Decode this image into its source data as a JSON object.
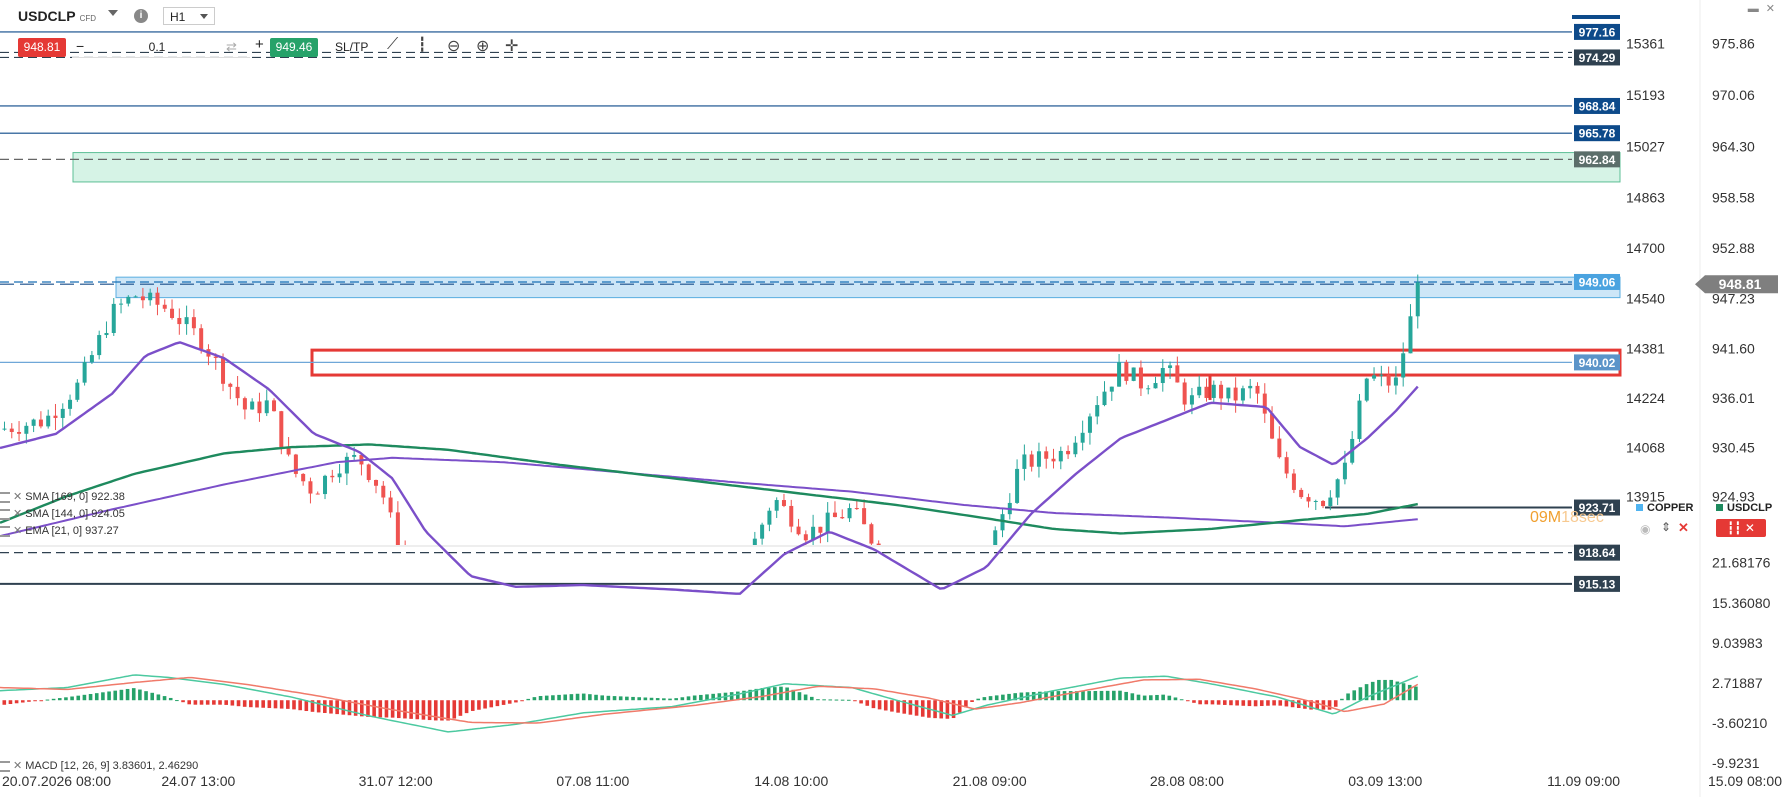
{
  "header": {
    "symbol": "USDCLP",
    "symbol_tag": "CFD",
    "timeframe": "H1",
    "sell_price": "948.81",
    "quantity": "0.1",
    "buy_price": "949.46",
    "sltp_label": "SL/TP",
    "info_label": "i"
  },
  "window_controls": {
    "minimize": "▬",
    "close": "✕"
  },
  "colors": {
    "up": "#26a69a",
    "down": "#ef5350",
    "sma169": "#7b4fc9",
    "sma144": "#1e8a5e",
    "ema21": "#7b4fc9",
    "zone_green": "#d6f3e6",
    "zone_blue": "#cde6f7",
    "red_box": "#e53935",
    "navy": "#0d4a8a",
    "dark_label": "#2f4150"
  },
  "legend": [
    {
      "label": "SMA [169, 0] 922.38"
    },
    {
      "label": "SMA [144, 0] 924.05"
    },
    {
      "label": "EMA [21, 0] 937.27"
    }
  ],
  "macd_legend": "MACD [12, 26, 9] 3.83601, 2.46290",
  "countdown": {
    "main": "09M",
    "seconds": "18sec"
  },
  "side_legend": {
    "copper": "COPPER",
    "usdclp": "USDCLP"
  },
  "chart_data": [
    {
      "type": "candlestick",
      "symbol": "USDCLP",
      "x_ticks": [
        "20.07.2026 08:00",
        "24.07 13:00",
        "31.07 12:00",
        "07.08 11:00",
        "14.08 10:00",
        "21.08 09:00",
        "28.08 08:00",
        "03.09 13:00",
        "11.09 09:00",
        "15.09 08:00"
      ],
      "right_axis": {
        "ticks": [
          "975.86",
          "970.06",
          "964.30",
          "958.58",
          "952.88",
          "947.23",
          "941.60",
          "936.01",
          "930.45",
          "924.93"
        ],
        "range": [
          919.5,
          978.5
        ]
      },
      "inner_axis": {
        "label": "COPPER",
        "ticks": [
          "15361",
          "15193",
          "15027",
          "14863",
          "14700",
          "14540",
          "14381",
          "14224",
          "14068",
          "13915"
        ]
      },
      "price_lines": [
        {
          "value": "977.16",
          "style": "solid",
          "color": "navy"
        },
        {
          "value": "974.29",
          "style": "dashed",
          "color": "dark"
        },
        {
          "value": "968.84",
          "style": "solid",
          "color": "navy"
        },
        {
          "value": "965.78",
          "style": "solid",
          "color": "navy"
        },
        {
          "value": "962.84",
          "style": "dashed",
          "color": "gray"
        },
        {
          "value": "949.06",
          "style": "dashed",
          "color": "blue"
        },
        {
          "value": "940.02",
          "style": "solid",
          "color": "lightblue"
        },
        {
          "value": "923.71",
          "style": "solid",
          "color": "dark"
        },
        {
          "value": "918.64",
          "style": "dashed",
          "color": "dark"
        },
        {
          "value": "915.13",
          "style": "solid",
          "color": "dark"
        }
      ],
      "current_price": "948.81",
      "zones": [
        {
          "name": "resistance-green",
          "from": 960.3,
          "to": 963.6
        },
        {
          "name": "resistance-blue",
          "from": 947.3,
          "to": 949.6
        },
        {
          "name": "range-red",
          "from": 938.6,
          "to": 941.4
        }
      ],
      "indicators": [
        "SMA [169, 0] 922.38",
        "SMA [144, 0] 924.05",
        "EMA [21, 0] 937.27"
      ],
      "close_path": [
        [
          0,
          932.5
        ],
        [
          40,
          933.5
        ],
        [
          70,
          937.5
        ],
        [
          100,
          945.6
        ],
        [
          120,
          947.6
        ],
        [
          150,
          946.0
        ],
        [
          180,
          942.5
        ],
        [
          200,
          938.5
        ],
        [
          220,
          934.5
        ],
        [
          240,
          935.5
        ],
        [
          260,
          928.0
        ],
        [
          280,
          925.5
        ],
        [
          300,
          928.5
        ],
        [
          320,
          929.3
        ],
        [
          340,
          925.8
        ],
        [
          360,
          917.5
        ],
        [
          400,
          914.5
        ],
        [
          440,
          914.5
        ],
        [
          480,
          915.8
        ],
        [
          520,
          915.0
        ],
        [
          560,
          913.8
        ],
        [
          600,
          914.8
        ],
        [
          660,
          916.0
        ],
        [
          690,
          924.8
        ],
        [
          720,
          920.8
        ],
        [
          760,
          923.5
        ],
        [
          800,
          916.0
        ],
        [
          840,
          913.0
        ],
        [
          880,
          917.8
        ],
        [
          910,
          928.5
        ],
        [
          950,
          930.0
        ],
        [
          980,
          936.0
        ],
        [
          1000,
          939.5
        ],
        [
          1020,
          937.5
        ],
        [
          1040,
          939.5
        ],
        [
          1060,
          935.5
        ],
        [
          1080,
          937.0
        ],
        [
          1100,
          936.0
        ],
        [
          1120,
          937.2
        ],
        [
          1140,
          929.0
        ],
        [
          1160,
          925.5
        ],
        [
          1180,
          924.5
        ],
        [
          1200,
          928.0
        ],
        [
          1220,
          938.5
        ],
        [
          1245,
          937.5
        ],
        [
          1258,
          944.5
        ],
        [
          1267,
          949.0
        ]
      ],
      "ema21_path": [
        [
          0,
          930.4
        ],
        [
          50,
          932.0
        ],
        [
          100,
          936.5
        ],
        [
          130,
          940.8
        ],
        [
          160,
          942.3
        ],
        [
          200,
          940.5
        ],
        [
          240,
          937.0
        ],
        [
          280,
          932.0
        ],
        [
          320,
          930.0
        ],
        [
          350,
          927.0
        ],
        [
          380,
          921.0
        ],
        [
          420,
          916.0
        ],
        [
          460,
          914.8
        ],
        [
          520,
          915.0
        ],
        [
          600,
          914.5
        ],
        [
          660,
          914.0
        ],
        [
          700,
          918.5
        ],
        [
          740,
          921.0
        ],
        [
          780,
          919.0
        ],
        [
          840,
          914.5
        ],
        [
          880,
          917.0
        ],
        [
          920,
          923.0
        ],
        [
          960,
          927.5
        ],
        [
          1000,
          931.5
        ],
        [
          1040,
          933.5
        ],
        [
          1080,
          935.5
        ],
        [
          1130,
          935.0
        ],
        [
          1160,
          930.5
        ],
        [
          1190,
          928.5
        ],
        [
          1220,
          931.5
        ],
        [
          1245,
          934.5
        ],
        [
          1265,
          937.3
        ]
      ],
      "sma144_path": [
        [
          0,
          922.0
        ],
        [
          60,
          925.0
        ],
        [
          120,
          927.5
        ],
        [
          200,
          929.8
        ],
        [
          260,
          930.5
        ],
        [
          330,
          930.8
        ],
        [
          400,
          930.2
        ],
        [
          500,
          928.5
        ],
        [
          600,
          927.0
        ],
        [
          700,
          925.5
        ],
        [
          800,
          924.0
        ],
        [
          880,
          922.5
        ],
        [
          940,
          921.3
        ],
        [
          1000,
          920.8
        ],
        [
          1080,
          921.3
        ],
        [
          1160,
          922.3
        ],
        [
          1220,
          923.0
        ],
        [
          1265,
          924.1
        ]
      ],
      "sma169_path": [
        [
          0,
          920.5
        ],
        [
          100,
          923.5
        ],
        [
          200,
          926.3
        ],
        [
          300,
          928.8
        ],
        [
          350,
          929.3
        ],
        [
          450,
          928.8
        ],
        [
          560,
          927.6
        ],
        [
          660,
          926.5
        ],
        [
          760,
          925.5
        ],
        [
          860,
          924.0
        ],
        [
          940,
          923.1
        ],
        [
          1040,
          922.6
        ],
        [
          1140,
          922.0
        ],
        [
          1200,
          921.6
        ],
        [
          1265,
          922.4
        ]
      ]
    },
    {
      "type": "macd",
      "label": "MACD [12, 26, 9] 3.83601, 2.46290",
      "y_ticks": [
        "21.68176",
        "15.36080",
        "9.03983",
        "2.71887",
        "-3.60210",
        "-9.9231"
      ],
      "range": [
        -11.0,
        24.0
      ],
      "macd_line": [
        [
          0,
          1.5
        ],
        [
          60,
          2.0
        ],
        [
          120,
          4.0
        ],
        [
          150,
          3.6
        ],
        [
          200,
          2.5
        ],
        [
          260,
          0.5
        ],
        [
          330,
          -2.5
        ],
        [
          400,
          -5.0
        ],
        [
          460,
          -3.8
        ],
        [
          520,
          -2.0
        ],
        [
          600,
          -1.0
        ],
        [
          660,
          1.0
        ],
        [
          700,
          2.6
        ],
        [
          760,
          2.0
        ],
        [
          800,
          0.0
        ],
        [
          850,
          -2.4
        ],
        [
          880,
          -0.8
        ],
        [
          940,
          1.5
        ],
        [
          1000,
          3.5
        ],
        [
          1040,
          3.8
        ],
        [
          1080,
          2.6
        ],
        [
          1140,
          0.5
        ],
        [
          1190,
          -2.2
        ],
        [
          1220,
          0.5
        ],
        [
          1265,
          3.8
        ]
      ],
      "signal_line": [
        [
          0,
          2.0
        ],
        [
          60,
          1.7
        ],
        [
          120,
          2.8
        ],
        [
          170,
          3.6
        ],
        [
          220,
          2.5
        ],
        [
          280,
          0.8
        ],
        [
          350,
          -1.5
        ],
        [
          420,
          -3.5
        ],
        [
          480,
          -3.6
        ],
        [
          540,
          -2.2
        ],
        [
          620,
          -0.8
        ],
        [
          680,
          0.6
        ],
        [
          730,
          2.2
        ],
        [
          780,
          1.8
        ],
        [
          830,
          0.3
        ],
        [
          870,
          -1.4
        ],
        [
          910,
          -0.4
        ],
        [
          970,
          1.6
        ],
        [
          1020,
          3.2
        ],
        [
          1070,
          3.3
        ],
        [
          1120,
          1.8
        ],
        [
          1170,
          -0.2
        ],
        [
          1200,
          -1.8
        ],
        [
          1235,
          -0.6
        ],
        [
          1265,
          2.5
        ]
      ]
    }
  ]
}
